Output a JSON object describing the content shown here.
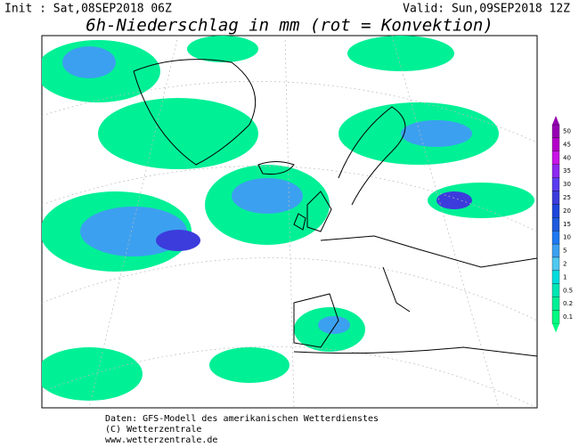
{
  "header": {
    "init": "Init : Sat,08SEP2018 06Z",
    "valid": "Valid: Sun,09SEP2018 12Z",
    "title": "6h-Niederschlag in mm (rot = Konvektion)"
  },
  "legend": {
    "labels": [
      "50",
      "45",
      "40",
      "35",
      "30",
      "25",
      "20",
      "15",
      "10",
      "5",
      "2",
      "1",
      "0.5",
      "0.2",
      "0.1"
    ],
    "colors": [
      "#9600b4",
      "#b400c8",
      "#c814e6",
      "#8c28f0",
      "#5a3cf0",
      "#3c3cdc",
      "#1e46dc",
      "#1e5adc",
      "#1e78f0",
      "#3ca0f0",
      "#50c8f0",
      "#00dcdc",
      "#00e6b4",
      "#00f096",
      "#00fa82"
    ]
  },
  "footer": {
    "line1": "Daten: GFS-Modell des amerikanischen Wetterdienstes",
    "line2": "(C) Wetterzentrale",
    "line3": "www.wetterzentrale.de"
  }
}
